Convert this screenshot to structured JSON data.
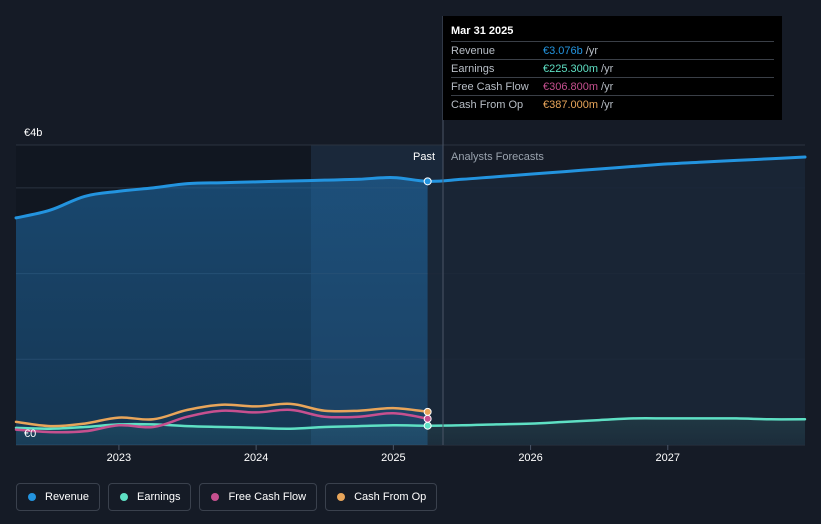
{
  "colors": {
    "background": "#151b26",
    "revenue": "#2394df",
    "earnings": "#5ee0c4",
    "fcf": "#c6508f",
    "cfo": "#e8a55a"
  },
  "axis": {
    "y_top_label": "€4b",
    "y_bottom_label": "€0",
    "past_label": "Past",
    "forecast_label": "Analysts Forecasts"
  },
  "tooltip": {
    "date": "Mar 31 2025",
    "rows": [
      {
        "label": "Revenue",
        "value": "€3.076b",
        "unit": "/yr",
        "color": "#2394df"
      },
      {
        "label": "Earnings",
        "value": "€225.300m",
        "unit": "/yr",
        "color": "#5ee0c4"
      },
      {
        "label": "Free Cash Flow",
        "value": "€306.800m",
        "unit": "/yr",
        "color": "#c6508f"
      },
      {
        "label": "Cash From Op",
        "value": "€387.000m",
        "unit": "/yr",
        "color": "#e8a55a"
      }
    ]
  },
  "legend": [
    {
      "label": "Revenue",
      "color": "#2394df"
    },
    {
      "label": "Earnings",
      "color": "#5ee0c4"
    },
    {
      "label": "Free Cash Flow",
      "color": "#c6508f"
    },
    {
      "label": "Cash From Op",
      "color": "#e8a55a"
    }
  ],
  "chart_data": {
    "type": "line",
    "x_ticks": [
      "2023",
      "2024",
      "2025",
      "2026",
      "2027"
    ],
    "xlim": [
      2022.25,
      2028.0
    ],
    "ylim": [
      0,
      3.5
    ],
    "y_unit": "€b",
    "grid": true,
    "past_end": 2025.25,
    "highlight_start": 2024.25,
    "series": [
      {
        "name": "Revenue",
        "color": "#2394df",
        "x": [
          2022.25,
          2022.5,
          2022.75,
          2023.0,
          2023.25,
          2023.5,
          2023.75,
          2024.0,
          2024.25,
          2024.5,
          2024.75,
          2025.0,
          2025.25,
          2025.5,
          2025.75,
          2026.0,
          2026.25,
          2026.5,
          2026.75,
          2027.0,
          2027.25,
          2027.5,
          2027.75,
          2028.0
        ],
        "values": [
          2.65,
          2.74,
          2.9,
          2.96,
          3.0,
          3.05,
          3.06,
          3.07,
          3.08,
          3.09,
          3.1,
          3.12,
          3.076,
          3.1,
          3.13,
          3.16,
          3.19,
          3.22,
          3.25,
          3.28,
          3.3,
          3.32,
          3.34,
          3.36
        ]
      },
      {
        "name": "Earnings",
        "color": "#5ee0c4",
        "x": [
          2022.25,
          2022.5,
          2022.75,
          2023.0,
          2023.25,
          2023.5,
          2023.75,
          2024.0,
          2024.25,
          2024.5,
          2024.75,
          2025.0,
          2025.25,
          2025.5,
          2025.75,
          2026.0,
          2026.25,
          2026.5,
          2026.75,
          2027.0,
          2027.25,
          2027.5,
          2027.75,
          2028.0
        ],
        "values": [
          0.2,
          0.19,
          0.21,
          0.24,
          0.24,
          0.22,
          0.21,
          0.2,
          0.19,
          0.21,
          0.22,
          0.23,
          0.2253,
          0.23,
          0.24,
          0.25,
          0.27,
          0.29,
          0.31,
          0.31,
          0.31,
          0.31,
          0.3,
          0.3
        ]
      },
      {
        "name": "Free Cash Flow",
        "color": "#c6508f",
        "x": [
          2022.25,
          2022.5,
          2022.75,
          2023.0,
          2023.25,
          2023.5,
          2023.75,
          2024.0,
          2024.25,
          2024.5,
          2024.75,
          2025.0,
          2025.25
        ],
        "values": [
          0.18,
          0.15,
          0.16,
          0.23,
          0.21,
          0.33,
          0.4,
          0.38,
          0.41,
          0.33,
          0.33,
          0.37,
          0.3068
        ]
      },
      {
        "name": "Cash From Op",
        "color": "#e8a55a",
        "x": [
          2022.25,
          2022.5,
          2022.75,
          2023.0,
          2023.25,
          2023.5,
          2023.75,
          2024.0,
          2024.25,
          2024.5,
          2024.75,
          2025.0,
          2025.25
        ],
        "values": [
          0.27,
          0.22,
          0.25,
          0.32,
          0.3,
          0.41,
          0.47,
          0.45,
          0.48,
          0.4,
          0.4,
          0.43,
          0.387
        ]
      }
    ]
  }
}
